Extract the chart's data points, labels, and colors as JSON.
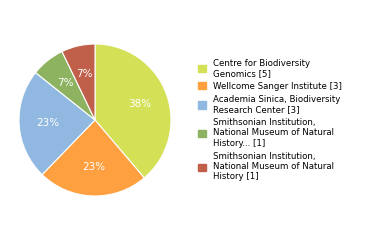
{
  "labels": [
    "Centre for Biodiversity\nGenomics [5]",
    "Wellcome Sanger Institute [3]",
    "Academia Sinica, Biodiversity\nResearch Center [3]",
    "Smithsonian Institution,\nNational Museum of Natural\nHistory... [1]",
    "Smithsonian Institution,\nNational Museum of Natural\nHistory [1]"
  ],
  "values": [
    38,
    23,
    23,
    7,
    7
  ],
  "colors": [
    "#d4e157",
    "#ffa040",
    "#90b8e0",
    "#8db360",
    "#c0604a"
  ],
  "pct_labels": [
    "38%",
    "23%",
    "23%",
    "7%",
    "7%"
  ],
  "background_color": "#ffffff",
  "text_color": "#ffffff",
  "fontsize": 7.5,
  "legend_fontsize": 6.2
}
